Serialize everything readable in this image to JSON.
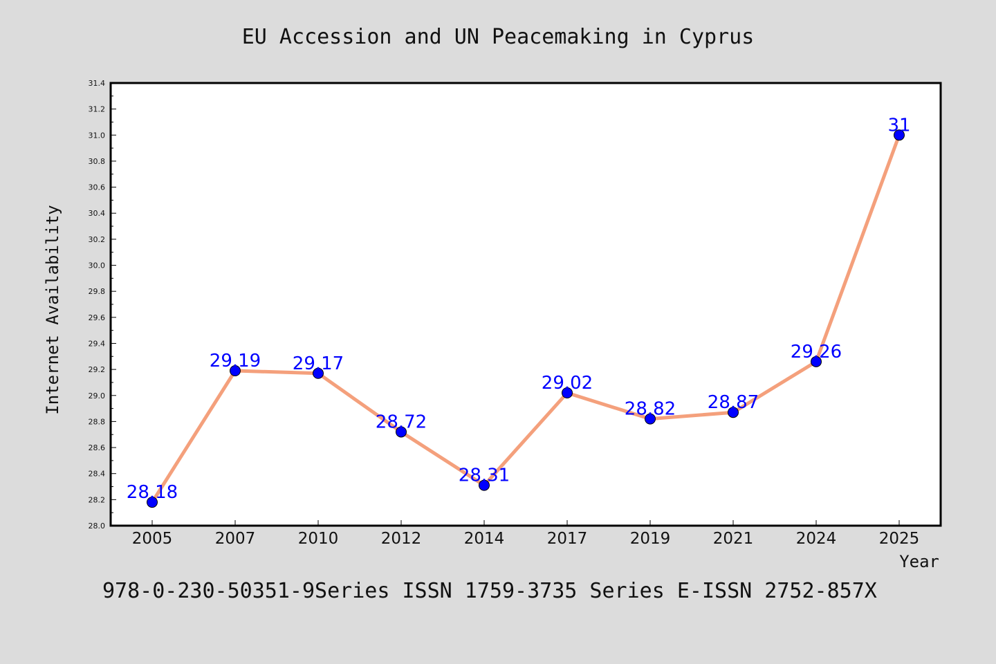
{
  "chart_data": {
    "type": "line",
    "title": "EU Accession and UN Peacemaking in Cyprus",
    "xlabel": "Year",
    "ylabel": "Internet Availability",
    "categories": [
      "2005",
      "2007",
      "2010",
      "2012",
      "2014",
      "2017",
      "2019",
      "2021",
      "2024",
      "2025"
    ],
    "series": [
      {
        "values": [
          28.18,
          29.19,
          29.17,
          28.72,
          28.31,
          29.02,
          28.82,
          28.87,
          29.26,
          31
        ],
        "data_labels": [
          "28.18",
          "29.19",
          "29.17",
          "28.72",
          "28.31",
          "29.02",
          "28.82",
          "28.87",
          "29.26",
          "31"
        ]
      }
    ],
    "ylim": [
      28.0,
      31.4
    ],
    "yticks": [
      "28.0",
      "28.2",
      "28.4",
      "28.6",
      "28.8",
      "29.0",
      "29.2",
      "29.4",
      "29.6",
      "29.8",
      "30.0",
      "30.2",
      "30.4",
      "30.6",
      "30.8",
      "31.0",
      "31.2",
      "31.4"
    ],
    "grid": false,
    "legend": "none",
    "colors": {
      "line": "#f4a07c",
      "marker": "#0000ff",
      "data_label": "#0000ff",
      "background": "#dcdcdc",
      "plot_background": "#ffffff"
    }
  },
  "footer_text": "978-0-230-50351-9Series ISSN 1759-3735 Series E-ISSN 2752-857X"
}
